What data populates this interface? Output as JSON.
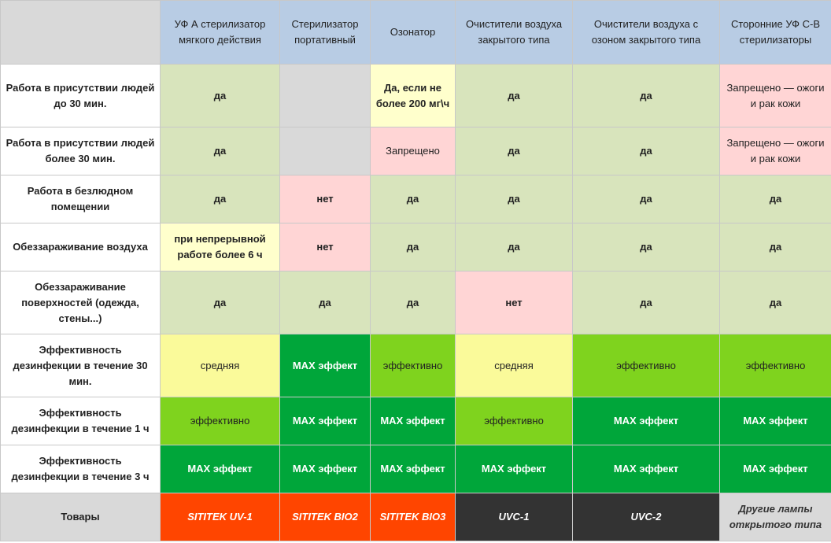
{
  "header": {
    "corner": "",
    "columns": [
      "УФ А стерилизатор мягкого действия",
      "Стерилизатор портативный",
      "Озонатор",
      "Очистители воздуха закрытого типа",
      "Очистители воздуха с озоном закрытого типа",
      "Сторонние УФ С-В стерилизаторы"
    ]
  },
  "rows": [
    {
      "label": "Работа в присутствии людей до 30 мин.",
      "cells": [
        "да",
        "",
        "Да, если не более 200 мг\\ч",
        "да",
        "да",
        "Запрещено — ожоги и рак кожи"
      ]
    },
    {
      "label": "Работа в присутствии людей более 30 мин.",
      "cells": [
        "да",
        "",
        "Запрещено",
        "да",
        "да",
        "Запрещено — ожоги и рак кожи"
      ]
    },
    {
      "label": "Работа в безлюдном помещении",
      "cells": [
        "да",
        "нет",
        "да",
        "да",
        "да",
        "да"
      ]
    },
    {
      "label": "Обеззараживание воздуха",
      "cells": [
        "при непрерывной работе более 6 ч",
        "нет",
        "да",
        "да",
        "да",
        "да"
      ]
    },
    {
      "label": "Обеззараживание поверхностей (одежда, стены...)",
      "cells": [
        "да",
        "да",
        "да",
        "нет",
        "да",
        "да"
      ]
    },
    {
      "label": "Эффективность дезинфекции в течение 30 мин.",
      "cells": [
        "средняя",
        "MAX эффект",
        "эффективно",
        "средняя",
        "эффективно",
        "эффективно"
      ]
    },
    {
      "label": "Эффективность дезинфекции в течение 1 ч",
      "cells": [
        "эффективно",
        "MAX эффект",
        "MAX эффект",
        "эффективно",
        "MAX эффект",
        "MAX эффект"
      ]
    },
    {
      "label": "Эффективность дезинфекции в течение 3 ч",
      "cells": [
        "MAX эффект",
        "MAX эффект",
        "MAX эффект",
        "MAX эффект",
        "MAX эффект",
        "MAX эффект"
      ]
    }
  ],
  "products": {
    "label": "Товары",
    "cells": [
      "SITITEK UV-1",
      "SITITEK BIO2",
      "SITITEK BIO3",
      "UVC-1",
      "UVC-2",
      "Другие лампы открытого типа"
    ]
  },
  "colors": {
    "header_blue": "#b8cce4",
    "pale_green": "#d8e4bc",
    "gray": "#d9d9d9",
    "pale_yellow": "#ffffcc",
    "pink": "#ffd5d5",
    "yellow": "#fafa9a",
    "lime": "#7fd31e",
    "dark_green": "#00a63a",
    "orange_red": "#ff4500",
    "charcoal": "#333333"
  }
}
